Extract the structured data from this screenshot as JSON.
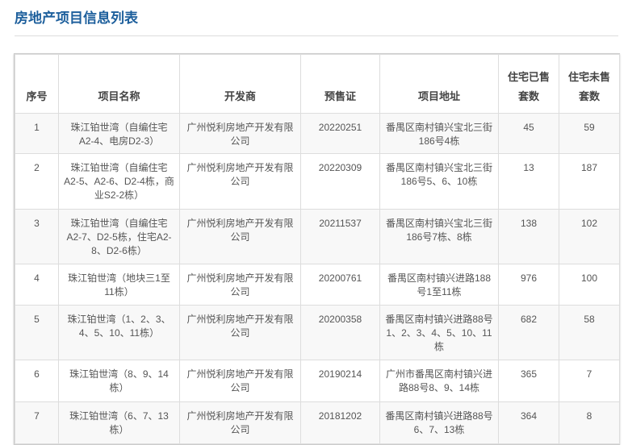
{
  "title": "房地产项目信息列表",
  "headers": [
    "序号",
    "项目名称",
    "开发商",
    "预售证",
    "项目地址",
    "住宅已售套数",
    "住宅未售套数"
  ],
  "rows": [
    {
      "no": "1",
      "name": "珠江铂世湾（自编住宅A2-4、电房D2-3）",
      "developer": "广州悦利房地产开发有限公司",
      "permit": "20220251",
      "address": "番禺区南村镇兴宝北三街186号4栋",
      "sold": "45",
      "unsold": "59"
    },
    {
      "no": "2",
      "name": "珠江铂世湾（自编住宅A2-5、A2-6、D2-4栋，商业S2-2栋）",
      "developer": "广州悦利房地产开发有限公司",
      "permit": "20220309",
      "address": "番禺区南村镇兴宝北三街186号5、6、10栋",
      "sold": "13",
      "unsold": "187"
    },
    {
      "no": "3",
      "name": "珠江铂世湾（自编住宅A2-7、D2-5栋，住宅A2-8、D2-6栋）",
      "developer": "广州悦利房地产开发有限公司",
      "permit": "20211537",
      "address": "番禺区南村镇兴宝北三街186号7栋、8栋",
      "sold": "138",
      "unsold": "102"
    },
    {
      "no": "4",
      "name": "珠江铂世湾（地块三1至11栋）",
      "developer": "广州悦利房地产开发有限公司",
      "permit": "20200761",
      "address": "番禺区南村镇兴进路188号1至11栋",
      "sold": "976",
      "unsold": "100"
    },
    {
      "no": "5",
      "name": "珠江铂世湾（1、2、3、4、5、10、11栋）",
      "developer": "广州悦利房地产开发有限公司",
      "permit": "20200358",
      "address": "番禺区南村镇兴进路88号1、2、3、4、5、10、11栋",
      "sold": "682",
      "unsold": "58"
    },
    {
      "no": "6",
      "name": "珠江铂世湾（8、9、14栋）",
      "developer": "广州悦利房地产开发有限公司",
      "permit": "20190214",
      "address": "广州市番禺区南村镇兴进路88号8、9、14栋",
      "sold": "365",
      "unsold": "7"
    },
    {
      "no": "7",
      "name": "珠江铂世湾（6、7、13栋）",
      "developer": "广州悦利房地产开发有限公司",
      "permit": "20181202",
      "address": "番禺区南村镇兴进路88号6、7、13栋",
      "sold": "364",
      "unsold": "8"
    }
  ]
}
